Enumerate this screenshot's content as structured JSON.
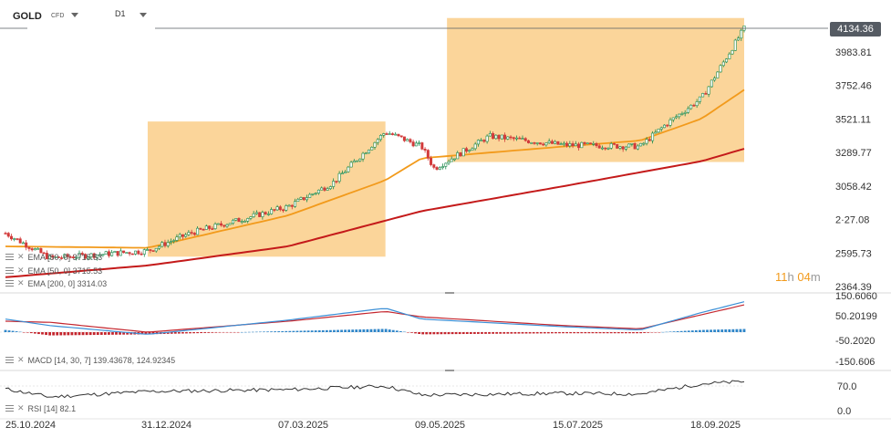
{
  "header": {
    "symbol": "GOLD",
    "instrument_type": "CFD",
    "timeframe": "D1"
  },
  "last_price": "4134.36",
  "countdown": {
    "hours": "11",
    "h_unit": "h",
    "minutes": "04",
    "m_unit": "m"
  },
  "colors": {
    "up": "#1b8a4c",
    "down": "#d23a3a",
    "ema50": "#f29a1b",
    "ema200": "#c41a1a",
    "box": "#fbd08f",
    "macd_line": "#3a8fd6",
    "signal_line": "#c4262e",
    "hist_up": "#2f86c9",
    "hist_down": "#c4262e"
  },
  "indicators": {
    "ema1": {
      "label": "EMA [50, 0] 3715.53"
    },
    "ema2": {
      "label": "EMA [50, 0] 3715.53"
    },
    "ema3": {
      "label": "EMA [200, 0] 3314.03"
    },
    "macd": {
      "label": "MACD [14, 30, 7] 139.43678, 124.92345"
    },
    "rsi": {
      "label": "RSI [14] 82.1"
    }
  },
  "chart_data": [
    {
      "type": "candlestick",
      "title": "GOLD D1",
      "x_ticks": [
        "25.10.2024",
        "31.12.2024",
        "07.03.2025",
        "09.05.2025",
        "15.07.2025",
        "18.09.2025"
      ],
      "y_ticks": [
        "3983.81",
        "3752.46",
        "3521.11",
        "3289.77",
        "3058.42",
        "2·27.08",
        "2595.73",
        "2364.39"
      ],
      "ylim": [
        2364.39,
        4134.36
      ],
      "close_approx": [
        [
          "25.10.2024",
          2740
        ],
        [
          "15.11.2024",
          2570
        ],
        [
          "31.12.2024",
          2620
        ],
        [
          "20.01.2025",
          2740
        ],
        [
          "07.03.2025",
          2920
        ],
        [
          "28.03.2025",
          3080
        ],
        [
          "22.04.2025",
          3430
        ],
        [
          "09.05.2025",
          3330
        ],
        [
          "15.05.2025",
          3180
        ],
        [
          "10.06.2025",
          3400
        ],
        [
          "15.07.2025",
          3340
        ],
        [
          "20.08.2025",
          3330
        ],
        [
          "01.09.2025",
          3480
        ],
        [
          "18.09.2025",
          3660
        ],
        [
          "08.10.2025",
          4134.36
        ]
      ],
      "ema50_approx": [
        [
          "25.10.2024",
          2650
        ],
        [
          "31.12.2024",
          2640
        ],
        [
          "07.03.2025",
          2860
        ],
        [
          "22.04.2025",
          3100
        ],
        [
          "09.05.2025",
          3250
        ],
        [
          "15.07.2025",
          3330
        ],
        [
          "20.08.2025",
          3370
        ],
        [
          "18.09.2025",
          3520
        ],
        [
          "08.10.2025",
          3715.53
        ]
      ],
      "ema200_approx": [
        [
          "25.10.2024",
          2440
        ],
        [
          "31.12.2024",
          2520
        ],
        [
          "07.03.2025",
          2650
        ],
        [
          "09.05.2025",
          2890
        ],
        [
          "15.07.2025",
          3060
        ],
        [
          "18.09.2025",
          3230
        ],
        [
          "08.10.2025",
          3314.03
        ]
      ],
      "highlight_zones": [
        {
          "from": "31.12.2024",
          "to": "22.04.2025"
        },
        {
          "from": "21.05.2025",
          "to": "08.10.2025"
        }
      ]
    },
    {
      "type": "macd",
      "y_ticks": [
        "150.6060",
        "50.20199",
        "-50.2020",
        "-150.606"
      ],
      "ylim": [
        -150.606,
        150.606
      ],
      "macd_approx": [
        [
          "25.10.2024",
          60
        ],
        [
          "15.11.2024",
          30
        ],
        [
          "31.12.2024",
          -10
        ],
        [
          "07.03.2025",
          55
        ],
        [
          "22.04.2025",
          110
        ],
        [
          "09.05.2025",
          60
        ],
        [
          "15.07.2025",
          25
        ],
        [
          "20.08.2025",
          10
        ],
        [
          "18.09.2025",
          90
        ],
        [
          "08.10.2025",
          139.43678
        ]
      ],
      "signal_approx": [
        [
          "25.10.2024",
          50
        ],
        [
          "15.11.2024",
          45
        ],
        [
          "31.12.2024",
          0
        ],
        [
          "07.03.2025",
          50
        ],
        [
          "22.04.2025",
          95
        ],
        [
          "09.05.2025",
          70
        ],
        [
          "15.07.2025",
          30
        ],
        [
          "20.08.2025",
          15
        ],
        [
          "18.09.2025",
          80
        ],
        [
          "08.10.2025",
          124.92345
        ]
      ]
    },
    {
      "type": "line",
      "name": "RSI [14]",
      "y_ticks": [
        "70.0",
        "0.0"
      ],
      "ylim": [
        0,
        100
      ],
      "rsi_approx": [
        [
          "25.10.2024",
          62
        ],
        [
          "15.11.2024",
          40
        ],
        [
          "31.12.2024",
          55
        ],
        [
          "07.03.2025",
          60
        ],
        [
          "22.04.2025",
          70
        ],
        [
          "09.05.2025",
          45
        ],
        [
          "15.07.2025",
          50
        ],
        [
          "20.08.2025",
          48
        ],
        [
          "18.09.2025",
          76
        ],
        [
          "08.10.2025",
          82.1
        ]
      ]
    }
  ]
}
